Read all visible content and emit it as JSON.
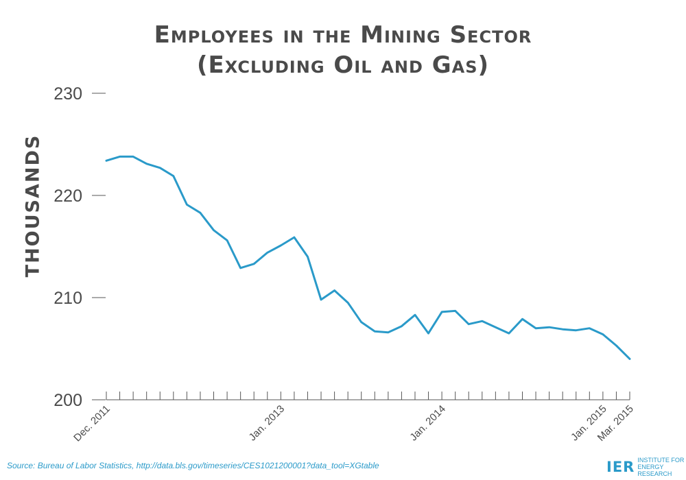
{
  "colors": {
    "line": "#2a9ac9",
    "text": "#4a4a4a",
    "axis": "#555555",
    "source": "#2a9ac9"
  },
  "logo": {
    "mark": "IER",
    "line1": "INSTITUTE FOR",
    "line2": "ENERGY RESEARCH"
  },
  "source": "Source: Bureau of Labor Statistics, http://data.bls.gov/timeseries/CES1021200001?data_tool=XGtable",
  "chart_data": {
    "type": "line",
    "title": "Employees in the Mining Sector",
    "subtitle": "(Excluding Oil and Gas)",
    "ylabel": "THOUSANDS",
    "xlabel": "",
    "ylim": [
      200,
      230
    ],
    "yticks": [
      "200",
      "210",
      "220",
      "230"
    ],
    "grid": false,
    "legend": "none",
    "x_labels": [
      {
        "index": 0,
        "text": "Dec. 2011"
      },
      {
        "index": 13,
        "text": "Jan. 2013"
      },
      {
        "index": 25,
        "text": "Jan. 2014"
      },
      {
        "index": 37,
        "text": "Jan. 2015"
      },
      {
        "index": 39,
        "text": "Mar. 2015"
      }
    ],
    "x": [
      "Dec. 2011",
      "Jan. 2012",
      "Feb. 2012",
      "Mar. 2012",
      "Apr. 2012",
      "May 2012",
      "Jun. 2012",
      "Jul. 2012",
      "Aug. 2012",
      "Sep. 2012",
      "Oct. 2012",
      "Nov. 2012",
      "Dec. 2012",
      "Jan. 2013",
      "Feb. 2013",
      "Mar. 2013",
      "Apr. 2013",
      "May 2013",
      "Jun. 2013",
      "Jul. 2013",
      "Aug. 2013",
      "Sep. 2013",
      "Oct. 2013",
      "Nov. 2013",
      "Dec. 2013",
      "Jan. 2014",
      "Feb. 2014",
      "Mar. 2014",
      "Apr. 2014",
      "May 2014",
      "Jun. 2014",
      "Jul. 2014",
      "Aug. 2014",
      "Sep. 2014",
      "Oct. 2014",
      "Nov. 2014",
      "Dec. 2014",
      "Jan. 2015",
      "Feb. 2015",
      "Mar. 2015"
    ],
    "values": [
      223.4,
      223.8,
      223.8,
      223.1,
      222.7,
      221.9,
      219.1,
      218.3,
      216.6,
      215.6,
      212.9,
      213.3,
      214.4,
      215.1,
      215.9,
      214.0,
      209.8,
      210.7,
      209.5,
      207.6,
      206.7,
      206.6,
      207.2,
      208.3,
      206.5,
      208.6,
      208.7,
      207.4,
      207.7,
      207.1,
      206.5,
      207.9,
      207.0,
      207.1,
      206.9,
      206.8,
      207.0,
      206.4,
      205.3,
      204.0
    ]
  }
}
